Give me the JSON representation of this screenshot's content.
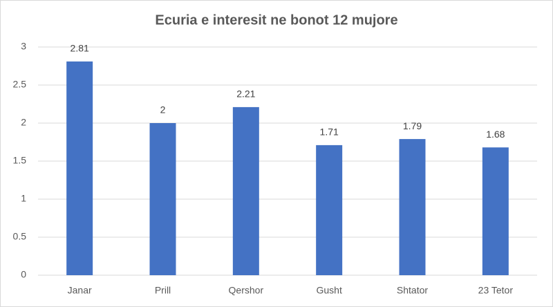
{
  "chart_data": {
    "type": "bar",
    "title": "Ecuria e interesit ne bonot 12 mujore",
    "categories": [
      "Janar",
      "Prill",
      "Qershor",
      "Gusht",
      "Shtator",
      "23 Tetor"
    ],
    "values": [
      2.81,
      2,
      2.21,
      1.71,
      1.79,
      1.68
    ],
    "color": "#4472c4",
    "ylim": [
      0,
      3
    ],
    "yticks": [
      0,
      0.5,
      1,
      1.5,
      2,
      2.5,
      3
    ],
    "grid": true
  }
}
